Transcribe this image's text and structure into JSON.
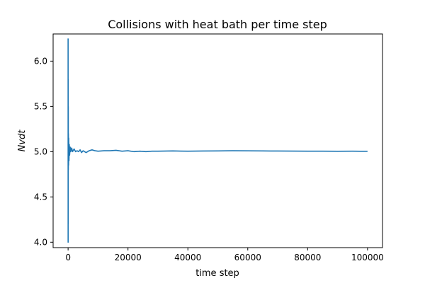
{
  "chart_data": {
    "type": "line",
    "title": "Collisions with heat bath per time step",
    "xlabel": "time step",
    "ylabel": "Nvdt",
    "xlim": [
      -5000,
      105000
    ],
    "ylim": [
      3.94,
      6.3
    ],
    "xticks": [
      0,
      20000,
      40000,
      60000,
      80000,
      100000
    ],
    "xtick_labels": [
      "0",
      "20000",
      "40000",
      "60000",
      "80000",
      "100000"
    ],
    "yticks": [
      4.0,
      4.5,
      5.0,
      5.5,
      6.0
    ],
    "ytick_labels": [
      "4.0",
      "4.5",
      "5.0",
      "5.5",
      "6.0"
    ],
    "grid": false,
    "series": [
      {
        "color": "#1f77b4",
        "x": [
          0,
          10,
          20,
          40,
          60,
          80,
          100,
          150,
          200,
          300,
          400,
          500,
          700,
          900,
          1200,
          1500,
          2000,
          2500,
          3000,
          3500,
          4000,
          4500,
          5000,
          5500,
          6000,
          7000,
          8000,
          9000,
          10000,
          12000,
          14000,
          16000,
          18000,
          20000,
          22000,
          24000,
          26000,
          28000,
          30000,
          35000,
          40000,
          45000,
          50000,
          55000,
          60000,
          65000,
          70000,
          75000,
          80000,
          85000,
          90000,
          95000,
          100000
        ],
        "y": [
          6.25,
          4.0,
          5.8,
          4.2,
          5.5,
          4.8,
          5.2,
          4.85,
          5.15,
          4.9,
          5.08,
          4.96,
          5.05,
          5.0,
          5.04,
          5.0,
          5.03,
          5.0,
          5.01,
          5.0,
          5.02,
          4.99,
          5.01,
          5.0,
          4.99,
          5.01,
          5.02,
          5.01,
          5.005,
          5.01,
          5.01,
          5.015,
          5.005,
          5.01,
          5.0,
          5.005,
          5.0,
          5.005,
          5.005,
          5.008,
          5.005,
          5.007,
          5.008,
          5.01,
          5.009,
          5.008,
          5.007,
          5.006,
          5.005,
          5.005,
          5.004,
          5.005,
          5.004
        ]
      }
    ]
  }
}
